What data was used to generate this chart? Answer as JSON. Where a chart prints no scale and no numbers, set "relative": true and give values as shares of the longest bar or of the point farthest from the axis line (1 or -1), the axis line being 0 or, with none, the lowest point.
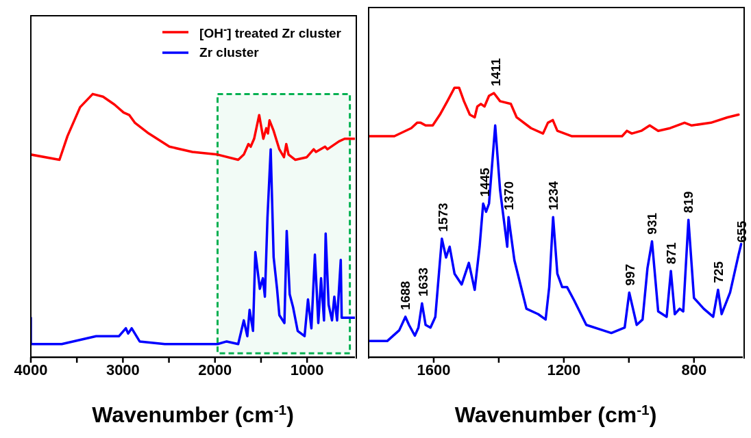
{
  "chart_data": [
    {
      "type": "line",
      "relative": true,
      "xlabel": "Wavenumber (cm$^{-1}$)",
      "xlim": [
        4000,
        480
      ],
      "xticks": [
        4000,
        {
          "value": 3500,
          "label": null
        },
        3000,
        {
          "value": 2500,
          "label": null
        },
        2000,
        {
          "value": 1500,
          "label": null
        },
        1000
      ],
      "legend": "top right",
      "grid": false,
      "bands": [
        {
          "axis": "x",
          "from": 1972,
          "to": 535,
          "color": "#00b050"
        }
      ],
      "series": [
        {
          "name": "[OH$^{-}$] treated Zr cluster",
          "color": "#ff0000",
          "x": [
            4000,
            3689,
            3602,
            3465,
            3328,
            3216,
            3092,
            2993,
            2930,
            2868,
            2719,
            2495,
            2246,
            1972,
            1748,
            1687,
            1637,
            1612,
            1575,
            1520,
            1475,
            1443,
            1425,
            1408,
            1363,
            1301,
            1251,
            1226,
            1201,
            1127,
            1003,
            928,
            903,
            804,
            779,
            654,
            592,
            555,
            481
          ],
          "values": [
            0.77,
            0.75,
            0.84,
            0.95,
            1,
            0.99,
            0.96,
            0.93,
            0.92,
            0.89,
            0.85,
            0.8,
            0.78,
            0.77,
            0.75,
            0.77,
            0.81,
            0.8,
            0.83,
            0.92,
            0.83,
            0.87,
            0.85,
            0.9,
            0.86,
            0.79,
            0.76,
            0.81,
            0.77,
            0.75,
            0.76,
            0.79,
            0.78,
            0.8,
            0.79,
            0.82,
            0.83,
            0.83,
            0.83
          ]
        },
        {
          "name": "Zr cluster",
          "color": "#0000ff",
          "x": [
            4000,
            4000,
            3664,
            3291,
            3042,
            2968,
            2943,
            2905,
            2818,
            2545,
            2296,
            1972,
            1873,
            1748,
            1687,
            1649,
            1624,
            1587,
            1562,
            1513,
            1480,
            1458,
            1430,
            1395,
            1363,
            1326,
            1301,
            1246,
            1221,
            1189,
            1152,
            1102,
            1027,
            990,
            953,
            915,
            878,
            848,
            816,
            798,
            766,
            729,
            704,
            674,
            634,
            624,
            481
          ],
          "values": [
            0.15,
            0.05,
            0.05,
            0.08,
            0.08,
            0.11,
            0.09,
            0.11,
            0.06,
            0.05,
            0.05,
            0.05,
            0.06,
            0.05,
            0.14,
            0.08,
            0.18,
            0.1,
            0.4,
            0.26,
            0.3,
            0.23,
            0.53,
            0.79,
            0.38,
            0.26,
            0.16,
            0.13,
            0.48,
            0.24,
            0.19,
            0.1,
            0.08,
            0.22,
            0.11,
            0.39,
            0.13,
            0.3,
            0.14,
            0.47,
            0.2,
            0.14,
            0.23,
            0.14,
            0.37,
            0.15,
            0.15
          ]
        }
      ]
    },
    {
      "type": "line",
      "relative": true,
      "xlabel": "Wavenumber (cm$^{-1}$)",
      "xlim": [
        1800,
        650
      ],
      "xticks": [
        1600,
        {
          "value": 1400,
          "label": null
        },
        1200,
        {
          "value": 1000,
          "label": null
        },
        800
      ],
      "grid": false,
      "annotations": [
        {
          "text": "1688",
          "x": 1688,
          "y": 0.15
        },
        {
          "text": "1633",
          "x": 1633,
          "y": 0.2
        },
        {
          "text": "1573",
          "x": 1573,
          "y": 0.44
        },
        {
          "text": "1445",
          "x": 1445,
          "y": 0.57
        },
        {
          "text": "1411",
          "x": 1411,
          "y": 0.98
        },
        {
          "text": "1370",
          "x": 1370,
          "y": 0.52
        },
        {
          "text": "1234",
          "x": 1234,
          "y": 0.52
        },
        {
          "text": "997",
          "x": 997,
          "y": 0.24
        },
        {
          "text": "931",
          "x": 931,
          "y": 0.43
        },
        {
          "text": "871",
          "x": 871,
          "y": 0.32
        },
        {
          "text": "819",
          "x": 819,
          "y": 0.51
        },
        {
          "text": "725",
          "x": 725,
          "y": 0.25
        },
        {
          "text": "655",
          "x": 655,
          "y": 0.4
        }
      ],
      "series": [
        {
          "color": "#ff0000",
          "x": [
            1800,
            1721,
            1669,
            1651,
            1640,
            1625,
            1603,
            1581,
            1558,
            1536,
            1522,
            1507,
            1489,
            1474,
            1466,
            1455,
            1444,
            1430,
            1415,
            1396,
            1363,
            1345,
            1301,
            1264,
            1249,
            1234,
            1220,
            1175,
            1116,
            1021,
            1006,
            991,
            962,
            936,
            910,
            873,
            829,
            807,
            748,
            697,
            663
          ],
          "values": [
            0.82,
            0.82,
            0.85,
            0.87,
            0.87,
            0.86,
            0.86,
            0.9,
            0.95,
            1,
            1,
            0.95,
            0.9,
            0.89,
            0.93,
            0.94,
            0.93,
            0.97,
            0.98,
            0.95,
            0.94,
            0.89,
            0.85,
            0.83,
            0.87,
            0.88,
            0.84,
            0.82,
            0.82,
            0.82,
            0.84,
            0.83,
            0.84,
            0.86,
            0.84,
            0.85,
            0.87,
            0.86,
            0.87,
            0.89,
            0.9
          ]
        },
        {
          "color": "#0000ff",
          "x": [
            1800,
            1743,
            1706,
            1687,
            1676,
            1658,
            1647,
            1636,
            1625,
            1610,
            1595,
            1584,
            1575,
            1562,
            1551,
            1536,
            1514,
            1492,
            1474,
            1459,
            1448,
            1439,
            1430,
            1411,
            1396,
            1374,
            1370,
            1352,
            1315,
            1279,
            1256,
            1245,
            1233,
            1220,
            1205,
            1190,
            1168,
            1131,
            1080,
            1054,
            1013,
            999,
            976,
            958,
            943,
            929,
            910,
            884,
            871,
            859,
            844,
            833,
            817,
            800,
            770,
            741,
            726,
            715,
            689,
            663,
            655
          ],
          "values": [
            0.06,
            0.06,
            0.1,
            0.15,
            0.12,
            0.08,
            0.11,
            0.2,
            0.12,
            0.11,
            0.15,
            0.31,
            0.44,
            0.37,
            0.41,
            0.31,
            0.27,
            0.35,
            0.25,
            0.41,
            0.57,
            0.54,
            0.57,
            0.86,
            0.62,
            0.41,
            0.52,
            0.36,
            0.18,
            0.16,
            0.14,
            0.26,
            0.52,
            0.31,
            0.26,
            0.26,
            0.21,
            0.12,
            0.1,
            0.09,
            0.11,
            0.24,
            0.12,
            0.14,
            0.33,
            0.43,
            0.17,
            0.15,
            0.32,
            0.16,
            0.18,
            0.17,
            0.51,
            0.22,
            0.18,
            0.15,
            0.25,
            0.16,
            0.24,
            0.38,
            0.42
          ]
        }
      ]
    }
  ]
}
